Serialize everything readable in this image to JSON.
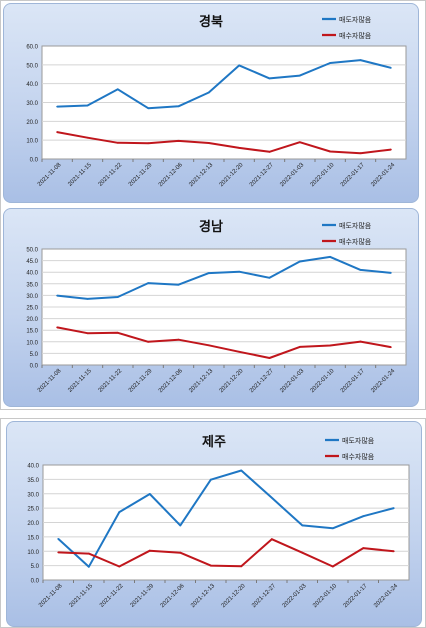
{
  "chart_data": [
    {
      "type": "line",
      "title": "경북",
      "categories": [
        "2021-11-08",
        "2021-11-15",
        "2021-11-22",
        "2021-11-29",
        "2021-12-06",
        "2021-12-13",
        "2021-12-20",
        "2021-12-27",
        "2022-01-03",
        "2022-01-10",
        "2022-01-17",
        "2022-01-24"
      ],
      "ylim": [
        0,
        60
      ],
      "yticks": [
        "60.0",
        "50.0",
        "40.0",
        "30.0",
        "20.0",
        "10.0",
        "0.0"
      ],
      "legend_position": "top-right",
      "grid": true,
      "series": [
        {
          "name": "매도자많음",
          "color": "#1f77c4",
          "values": [
            27.8,
            28.4,
            37.0,
            27.0,
            28.0,
            35.3,
            49.7,
            42.8,
            44.3,
            51.0,
            52.5,
            48.4
          ]
        },
        {
          "name": "매수자많음",
          "color": "#c0161c",
          "values": [
            14.3,
            11.3,
            8.6,
            8.4,
            9.6,
            8.5,
            5.9,
            3.8,
            8.9,
            4.0,
            3.1,
            5.0
          ]
        }
      ]
    },
    {
      "type": "line",
      "title": "경남",
      "categories": [
        "2021-11-08",
        "2021-11-15",
        "2021-11-22",
        "2021-11-29",
        "2021-12-06",
        "2021-12-13",
        "2021-12-20",
        "2021-12-27",
        "2022-01-03",
        "2022-01-10",
        "2022-01-17",
        "2022-01-24"
      ],
      "ylim": [
        0,
        50
      ],
      "yticks": [
        "50.0",
        "45.0",
        "40.0",
        "35.0",
        "30.0",
        "25.0",
        "20.0",
        "15.0",
        "10.0",
        "5.0",
        "0.0"
      ],
      "legend_position": "top-right",
      "grid": true,
      "series": [
        {
          "name": "매도자많음",
          "color": "#1f77c4",
          "values": [
            29.9,
            28.5,
            29.3,
            35.3,
            34.6,
            39.6,
            40.2,
            37.6,
            44.6,
            46.6,
            41.0,
            39.7
          ]
        },
        {
          "name": "매수자많음",
          "color": "#c0161c",
          "values": [
            16.2,
            13.7,
            13.9,
            10.0,
            10.9,
            8.5,
            5.7,
            3.0,
            7.8,
            8.4,
            10.1,
            7.7
          ]
        }
      ]
    },
    {
      "type": "line",
      "title": "제주",
      "categories": [
        "2021-11-08",
        "2021-11-15",
        "2021-11-22",
        "2021-11-29",
        "2021-12-06",
        "2021-12-13",
        "2021-12-20",
        "2021-12-27",
        "2022-01-03",
        "2022-01-10",
        "2022-01-17",
        "2022-01-24"
      ],
      "ylim": [
        0,
        40
      ],
      "yticks": [
        "40.0",
        "35.0",
        "30.0",
        "25.0",
        "20.0",
        "15.0",
        "10.0",
        "5.0",
        "0.0"
      ],
      "legend_position": "top-right",
      "grid": true,
      "series": [
        {
          "name": "매도자많음",
          "color": "#1f77c4",
          "values": [
            14.3,
            4.6,
            23.6,
            29.9,
            19.0,
            34.9,
            38.1,
            28.6,
            19.0,
            18.0,
            22.2,
            25.0
          ]
        },
        {
          "name": "매수자많음",
          "color": "#c0161c",
          "values": [
            9.6,
            9.2,
            4.7,
            10.2,
            9.5,
            5.0,
            4.8,
            14.2,
            9.5,
            4.7,
            11.1,
            10.0
          ]
        }
      ]
    }
  ]
}
